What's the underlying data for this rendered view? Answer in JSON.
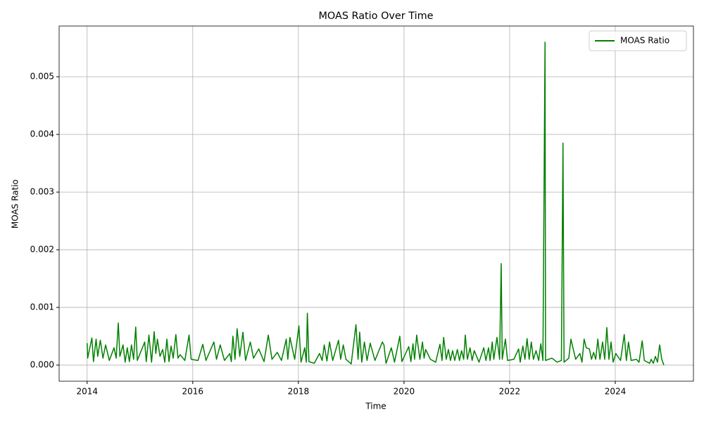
{
  "chart_data": {
    "type": "line",
    "title": "MOAS Ratio Over Time",
    "x_label": "Time",
    "y_label": "MOAS Ratio",
    "x": [
      2014.0,
      2014.01,
      2014.09,
      2014.12,
      2014.17,
      2014.2,
      2014.25,
      2014.3,
      2014.35,
      2014.42,
      2014.51,
      2014.55,
      2014.59,
      2014.62,
      2014.68,
      2014.72,
      2014.76,
      2014.8,
      2014.84,
      2014.88,
      2014.92,
      2014.95,
      2015.09,
      2015.12,
      2015.17,
      2015.22,
      2015.27,
      2015.3,
      2015.33,
      2015.38,
      2015.43,
      2015.47,
      2015.51,
      2015.55,
      2015.59,
      2015.63,
      2015.68,
      2015.72,
      2015.76,
      2015.85,
      2015.93,
      2015.97,
      2016.1,
      2016.19,
      2016.25,
      2016.4,
      2016.45,
      2016.52,
      2016.6,
      2016.7,
      2016.73,
      2016.76,
      2016.8,
      2016.84,
      2016.89,
      2016.95,
      2017.0,
      2017.09,
      2017.15,
      2017.25,
      2017.35,
      2017.43,
      2017.5,
      2017.6,
      2017.68,
      2017.77,
      2017.8,
      2017.84,
      2017.93,
      2018.01,
      2018.05,
      2018.12,
      2018.15,
      2018.17,
      2018.2,
      2018.3,
      2018.4,
      2018.45,
      2018.49,
      2018.54,
      2018.59,
      2018.65,
      2018.76,
      2018.8,
      2018.85,
      2018.9,
      2019.0,
      2019.09,
      2019.13,
      2019.16,
      2019.2,
      2019.25,
      2019.3,
      2019.36,
      2019.45,
      2019.59,
      2019.62,
      2019.66,
      2019.76,
      2019.82,
      2019.92,
      2019.96,
      2020.09,
      2020.13,
      2020.17,
      2020.2,
      2020.24,
      2020.3,
      2020.35,
      2020.38,
      2020.41,
      2020.5,
      2020.6,
      2020.68,
      2020.72,
      2020.75,
      2020.8,
      2020.84,
      2020.88,
      2020.92,
      2020.96,
      2021.01,
      2021.05,
      2021.09,
      2021.13,
      2021.16,
      2021.2,
      2021.25,
      2021.29,
      2021.33,
      2021.42,
      2021.51,
      2021.55,
      2021.6,
      2021.63,
      2021.67,
      2021.7,
      2021.76,
      2021.81,
      2021.84,
      2021.86,
      2021.92,
      2021.96,
      2022.08,
      2022.17,
      2022.2,
      2022.25,
      2022.29,
      2022.33,
      2022.37,
      2022.41,
      2022.45,
      2022.5,
      2022.55,
      2022.59,
      2022.63,
      2022.67,
      2022.68,
      2022.8,
      2022.9,
      2022.98,
      2023.01,
      2023.03,
      2023.12,
      2023.16,
      2023.25,
      2023.33,
      2023.37,
      2023.41,
      2023.45,
      2023.51,
      2023.55,
      2023.59,
      2023.63,
      2023.67,
      2023.71,
      2023.76,
      2023.8,
      2023.84,
      2023.88,
      2023.92,
      2023.96,
      2024.01,
      2024.1,
      2024.17,
      2024.21,
      2024.25,
      2024.3,
      2024.4,
      2024.45,
      2024.51,
      2024.55,
      2024.65,
      2024.68,
      2024.72,
      2024.76,
      2024.8,
      2024.84,
      2024.88,
      2024.92
    ],
    "series": [
      {
        "name": "MOAS Ratio",
        "color": "#008000",
        "values": [
          0.00038,
          0.00012,
          0.00047,
          6e-05,
          0.00045,
          0.00015,
          0.00043,
          0.00012,
          0.00035,
          8e-05,
          0.0003,
          0.00012,
          0.00073,
          0.00015,
          0.00035,
          5e-05,
          0.0003,
          6e-05,
          0.00035,
          0.0001,
          0.00066,
          8e-05,
          0.0004,
          6e-05,
          0.00052,
          5e-05,
          0.00058,
          0.0002,
          0.00045,
          0.00015,
          0.00027,
          5e-05,
          0.00045,
          6e-05,
          0.00033,
          0.00012,
          0.00053,
          0.00012,
          0.00018,
          8e-05,
          0.00052,
          0.0001,
          8e-05,
          0.00036,
          8e-05,
          0.0004,
          0.0001,
          0.00035,
          8e-05,
          0.0002,
          6e-05,
          0.0005,
          0.0001,
          0.00063,
          0.00015,
          0.00057,
          8e-05,
          0.0004,
          0.00012,
          0.00028,
          6e-05,
          0.00052,
          0.0001,
          0.00022,
          8e-05,
          0.00045,
          0.0001,
          0.00048,
          0.0001,
          0.00068,
          5e-05,
          0.0003,
          5e-05,
          0.0009,
          6e-05,
          3e-05,
          0.0002,
          8e-05,
          0.00035,
          7e-05,
          0.0004,
          8e-05,
          0.00043,
          0.0001,
          0.00035,
          0.0001,
          2e-05,
          0.0007,
          0.0001,
          0.00057,
          5e-05,
          0.0004,
          8e-05,
          0.00038,
          8e-05,
          0.0004,
          0.00035,
          3e-05,
          0.0003,
          5e-05,
          0.0005,
          6e-05,
          0.00032,
          6e-05,
          0.00037,
          0.0001,
          0.00052,
          0.0001,
          0.0004,
          0.00012,
          0.00027,
          0.0001,
          5e-05,
          0.00036,
          8e-05,
          0.00048,
          0.0001,
          0.00027,
          8e-05,
          0.00025,
          8e-05,
          0.00027,
          8e-05,
          0.00025,
          0.0001,
          0.00052,
          0.0001,
          0.0003,
          8e-05,
          0.00025,
          5e-05,
          0.0003,
          8e-05,
          0.0003,
          8e-05,
          0.0004,
          0.0001,
          0.00048,
          0.0001,
          0.00176,
          0.0001,
          0.00045,
          8e-05,
          0.0001,
          0.00028,
          5e-05,
          0.00033,
          0.0001,
          0.00046,
          0.0001,
          0.0004,
          0.0001,
          0.00025,
          8e-05,
          0.00037,
          8e-05,
          0.0056,
          8e-05,
          0.00012,
          5e-05,
          8e-05,
          0.00385,
          5e-05,
          0.00012,
          0.00045,
          0.0001,
          0.0002,
          5e-05,
          0.00045,
          0.0003,
          0.00028,
          0.0001,
          0.00022,
          0.0001,
          0.00045,
          0.0001,
          0.0004,
          0.0001,
          0.00065,
          0.0001,
          0.0004,
          5e-05,
          0.0002,
          8e-05,
          0.00053,
          8e-05,
          0.0004,
          8e-05,
          0.0001,
          5e-05,
          0.00042,
          8e-05,
          3e-05,
          0.0001,
          3e-05,
          0.00015,
          5e-05,
          0.00035,
          0.0001,
          0.0
        ]
      }
    ],
    "xlim": [
      2013.47,
      2025.48
    ],
    "xticks": [
      2014,
      2016,
      2018,
      2020,
      2022,
      2024
    ],
    "ylim": [
      -0.00028,
      0.00588
    ],
    "yticks": [
      {
        "value": 0,
        "label": "0.000"
      },
      {
        "value": 0.001,
        "label": "0.001"
      },
      {
        "value": 0.002,
        "label": "0.002"
      },
      {
        "value": 0.003,
        "label": "0.003"
      },
      {
        "value": 0.004,
        "label": "0.004"
      },
      {
        "value": 0.005,
        "label": "0.005"
      }
    ],
    "grid": true,
    "legend": "upper right"
  }
}
